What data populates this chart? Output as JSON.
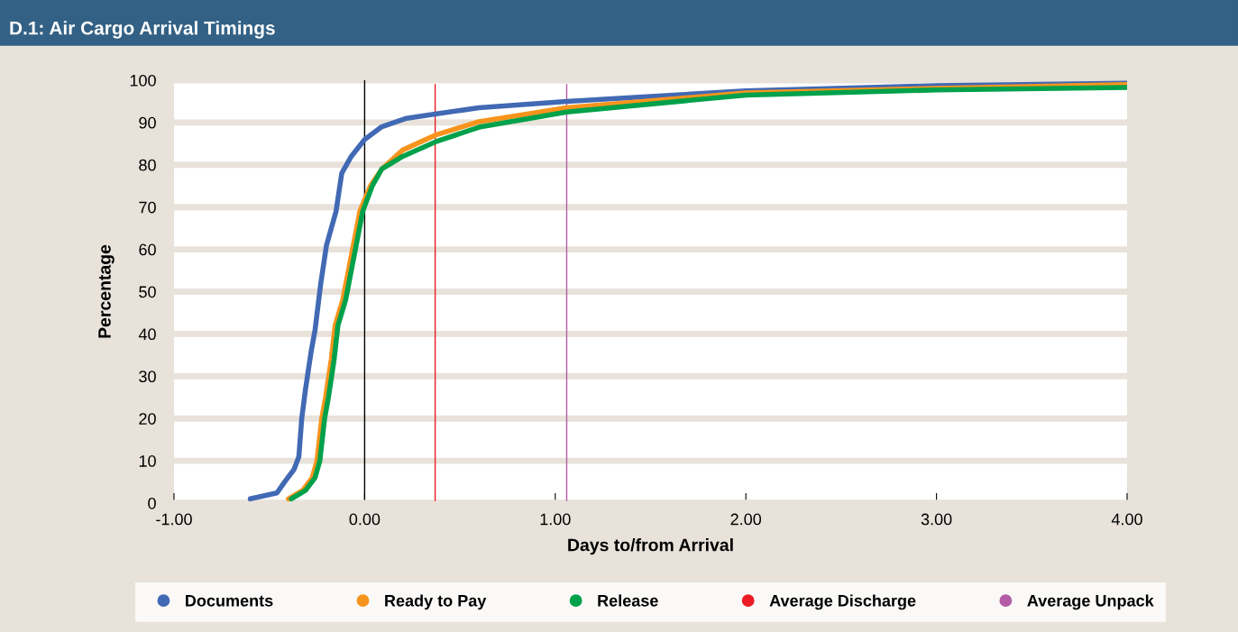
{
  "chart_data": {
    "type": "line",
    "title": "D.1: Air Cargo Arrival Timings",
    "xlabel": "Days to/from Arrival",
    "ylabel": "Percentage",
    "xlim": [
      -1,
      4
    ],
    "ylim": [
      0,
      100
    ],
    "xticks": [
      {
        "value": -1,
        "label": "-1.00"
      },
      {
        "value": 0,
        "label": "0.00"
      },
      {
        "value": 1,
        "label": "1.00"
      },
      {
        "value": 2,
        "label": "2.00"
      },
      {
        "value": 3,
        "label": "3.00"
      },
      {
        "value": 4,
        "label": "4.00"
      }
    ],
    "yticks": [
      0,
      10,
      20,
      30,
      40,
      50,
      60,
      70,
      80,
      90,
      100
    ],
    "grid": "y",
    "legend": "bottom",
    "marker": "none",
    "line_style": "solid",
    "ref_lines": [
      {
        "axis": "x",
        "value": 0,
        "color": "#000000"
      }
    ],
    "series": [
      {
        "name": "Documents",
        "color": "#4169b4",
        "x": [
          -0.6,
          -0.46,
          -0.42,
          -0.37,
          -0.345,
          -0.33,
          -0.31,
          -0.28,
          -0.26,
          -0.23,
          -0.2,
          -0.15,
          -0.12,
          -0.07,
          0.0,
          0.09,
          0.22,
          0.37,
          0.6,
          1.06,
          2.0,
          3.0,
          4.0
        ],
        "values": [
          1,
          2.4,
          5,
          8,
          11,
          20,
          27,
          36,
          41,
          52,
          61,
          69,
          78,
          82,
          86,
          89,
          91,
          92,
          93.5,
          95,
          97.5,
          98.7,
          99.3
        ]
      },
      {
        "name": "Ready to Pay",
        "color": "#f7941d",
        "x": [
          -0.4,
          -0.325,
          -0.275,
          -0.25,
          -0.225,
          -0.205,
          -0.175,
          -0.155,
          -0.115,
          -0.085,
          -0.055,
          -0.025,
          0.03,
          0.09,
          0.2,
          0.37,
          0.6,
          1.06,
          2.0,
          3.0,
          4.0
        ],
        "values": [
          1,
          3,
          6,
          10,
          20,
          25,
          34,
          42,
          48,
          55,
          62,
          69,
          75,
          79,
          83.5,
          87,
          90.2,
          93.5,
          97,
          98.1,
          99
        ]
      },
      {
        "name": "Release",
        "color": "#00a14b",
        "x": [
          -0.385,
          -0.31,
          -0.26,
          -0.235,
          -0.21,
          -0.19,
          -0.16,
          -0.14,
          -0.1,
          -0.07,
          -0.04,
          -0.01,
          0.04,
          0.09,
          0.2,
          0.37,
          0.6,
          1.06,
          2.0,
          3.0,
          4.0
        ],
        "values": [
          1,
          3,
          6,
          10,
          20,
          25,
          34,
          42,
          48,
          55,
          62,
          69,
          75,
          79,
          82,
          85.4,
          88.9,
          92.5,
          96.5,
          97.7,
          98.3
        ]
      },
      {
        "name": "Average Discharge",
        "color": "#ed1c24",
        "x": [
          0.37,
          0.37
        ],
        "values": [
          0.6,
          99
        ]
      },
      {
        "name": "Average Unpack",
        "color": "#b45ba6",
        "x": [
          1.06,
          1.06
        ],
        "values": [
          0.6,
          99
        ]
      }
    ]
  }
}
